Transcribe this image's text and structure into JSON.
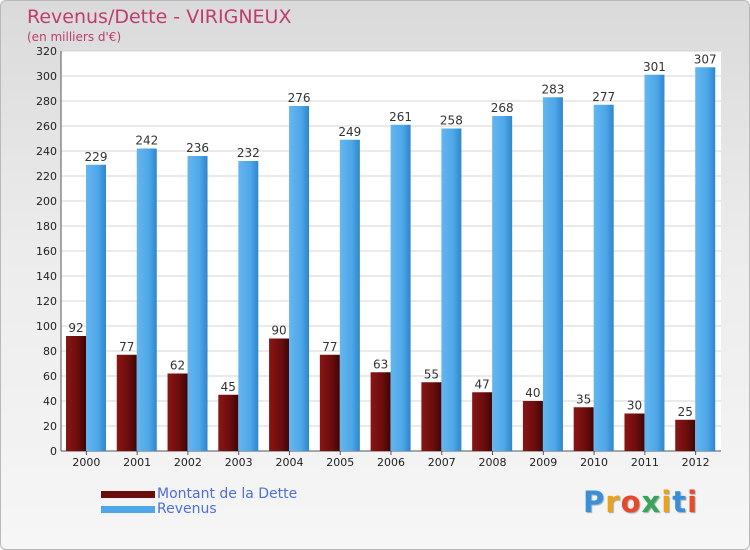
{
  "title": "Revenus/Dette - VIRIGNEUX",
  "subtitle": "(en milliers d'€)",
  "brand": "Proxiti",
  "colors": {
    "debt": "#6b0d0d",
    "revenue": "#4ea7e8",
    "title": "#c03c6f",
    "legend_text": "#4e6fd9"
  },
  "legend": [
    {
      "label": "Montant de la Dette",
      "color": "#6b0d0d"
    },
    {
      "label": "Revenus",
      "color": "#4ea7e8"
    }
  ],
  "chart_data": {
    "type": "bar",
    "title": "Revenus/Dette - VIRIGNEUX",
    "ylabel": "(en milliers d'€)",
    "xlabel": "",
    "categories": [
      "2000",
      "2001",
      "2002",
      "2003",
      "2004",
      "2005",
      "2006",
      "2007",
      "2008",
      "2009",
      "2010",
      "2011",
      "2012"
    ],
    "series": [
      {
        "name": "Montant de la Dette",
        "values": [
          92,
          77,
          62,
          45,
          90,
          77,
          63,
          55,
          47,
          40,
          35,
          30,
          25
        ]
      },
      {
        "name": "Revenus",
        "values": [
          229,
          242,
          236,
          232,
          276,
          249,
          261,
          258,
          268,
          283,
          277,
          301,
          307
        ]
      }
    ],
    "ylim": [
      0,
      320
    ],
    "yticks": [
      0,
      20,
      40,
      60,
      80,
      100,
      120,
      140,
      160,
      180,
      200,
      220,
      240,
      260,
      280,
      300,
      320
    ],
    "grid": true,
    "legend_position": "bottom-left"
  }
}
